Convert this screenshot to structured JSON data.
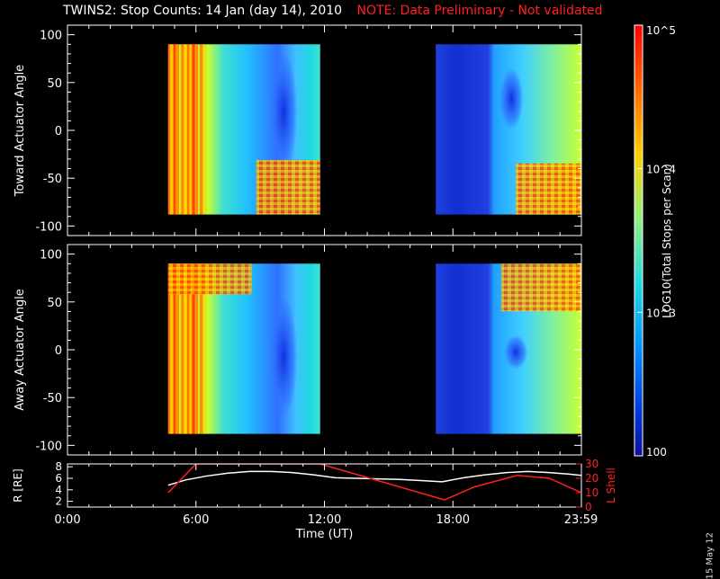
{
  "header": {
    "title": "TWINS2: Stop Counts: 14 Jan (day  14), 2010",
    "note": "NOTE: Data Preliminary - Not validated"
  },
  "footer": {
    "date": "15 May 12"
  },
  "chart_data": [
    {
      "type": "heatmap",
      "panel": "top",
      "ylabel": "Toward Actuator Angle",
      "ylim": [
        -110,
        110
      ],
      "yticks": [
        100,
        50,
        0,
        -50,
        -100
      ],
      "xlim_hours": [
        0,
        24
      ],
      "data_blocks_hours": [
        [
          4.7,
          11.8
        ],
        [
          17.2,
          24
        ]
      ],
      "y_range_data": [
        -88,
        90
      ]
    },
    {
      "type": "heatmap",
      "panel": "middle",
      "ylabel": "Away Actuator Angle",
      "ylim": [
        -110,
        110
      ],
      "yticks": [
        100,
        50,
        0,
        -50,
        -100
      ],
      "xlim_hours": [
        0,
        24
      ],
      "data_blocks_hours": [
        [
          4.7,
          11.8
        ],
        [
          17.2,
          24
        ]
      ],
      "y_range_data": [
        -88,
        90
      ]
    },
    {
      "type": "line",
      "panel": "bottom",
      "ylabel": "R [RE]",
      "y2label": "L Shell",
      "ylim": [
        1,
        8.5
      ],
      "y2lim": [
        0,
        30
      ],
      "yticks": [
        8,
        6,
        4,
        2
      ],
      "y2ticks": [
        30,
        20,
        10,
        0
      ],
      "xlabel": "Time (UT)",
      "xticks": [
        "0:00",
        "6:00",
        "12:00",
        "18:00",
        "23:59"
      ],
      "xtick_hours": [
        0,
        6,
        12,
        18,
        23.98
      ],
      "series": [
        {
          "name": "R",
          "color": "#ffffff",
          "x": [
            4.7,
            5.5,
            6.5,
            7.5,
            8.5,
            9.5,
            10.5,
            11.5,
            12.5,
            13.5,
            14.5,
            15.5,
            16.5,
            17.5,
            18.5,
            19.5,
            20.5,
            21.5,
            22.5,
            23.5,
            24
          ],
          "y": [
            4.8,
            5.7,
            6.4,
            6.9,
            7.2,
            7.2,
            7.0,
            6.6,
            6.1,
            6.0,
            5.9,
            5.8,
            5.6,
            5.4,
            6.1,
            6.6,
            7.0,
            7.2,
            7.0,
            6.7,
            6.5
          ]
        },
        {
          "name": "L Shell",
          "color": "#ff2020",
          "x": [
            4.7,
            6.0,
            11.8,
            17.6,
            19.0,
            21.0,
            22.5,
            24
          ],
          "y": [
            10,
            30,
            30,
            5,
            14,
            22,
            20,
            10
          ]
        }
      ]
    }
  ],
  "colorbar": {
    "label": "LOG10(Total Stops per Scan)",
    "ticks": [
      "10^5",
      "10^4",
      "10^3",
      "100"
    ],
    "tick_values": [
      100000,
      10000,
      1000,
      100
    ],
    "colors": [
      "#ff0000",
      "#ff6a00",
      "#ffd000",
      "#c8ff30",
      "#20e8c8",
      "#00a0ff",
      "#0040e0",
      "#1010a0"
    ]
  }
}
